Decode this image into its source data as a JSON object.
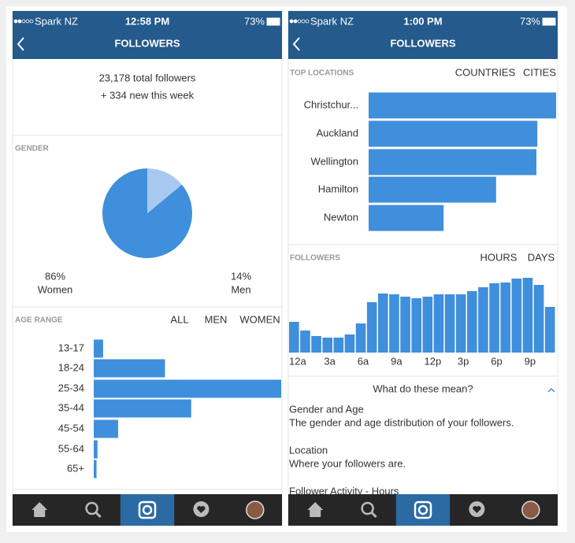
{
  "screens": [
    {
      "status": {
        "carrier": "Spark NZ",
        "time": "12:58 PM",
        "battery": "73%"
      },
      "title": "FOLLOWERS",
      "total": "23,178 total followers",
      "new": "+ 334 new this week",
      "gender": {
        "heading": "GENDER",
        "type": "pie",
        "categories": [
          "Women",
          "Men"
        ],
        "values": [
          86,
          14
        ],
        "value_labels": [
          "86%",
          "14%"
        ],
        "colors": [
          "#3f8fdc",
          "#a7c9ef"
        ]
      },
      "age": {
        "heading": "AGE RANGE",
        "tabs": [
          "ALL",
          "MEN",
          "WOMEN"
        ],
        "active_tab": 0,
        "type": "bar",
        "categories": [
          "13-17",
          "18-24",
          "25-34",
          "35-44",
          "45-54",
          "55-64",
          "65+"
        ],
        "values": [
          5,
          38,
          100,
          52,
          13,
          2,
          1.5
        ],
        "xlim": [
          0,
          100
        ],
        "color": "#3f8fdc"
      }
    },
    {
      "status": {
        "carrier": "Spark NZ",
        "time": "1:00 PM",
        "battery": "73%"
      },
      "title": "FOLLOWERS",
      "locations": {
        "heading": "TOP LOCATIONS",
        "tabs": [
          "COUNTRIES",
          "CITIES"
        ],
        "active_tab": 1,
        "type": "bar",
        "categories": [
          "Christchur...",
          "Auckland",
          "Wellington",
          "Hamilton",
          "Newton"
        ],
        "values": [
          100,
          90,
          89.5,
          68,
          40
        ],
        "xlim": [
          0,
          100
        ],
        "color": "#3f8fdc"
      },
      "activity": {
        "heading": "FOLLOWERS",
        "tabs": [
          "HOURS",
          "DAYS"
        ],
        "active_tab": 0,
        "type": "bar",
        "categories": [
          "12a",
          null,
          null,
          "3a",
          null,
          null,
          "6a",
          null,
          null,
          "9a",
          null,
          null,
          "12p",
          null,
          null,
          "3p",
          null,
          null,
          "6p",
          null,
          null,
          "9p",
          null,
          null
        ],
        "values": [
          39,
          28,
          21,
          19,
          19,
          23,
          37,
          64,
          75,
          74,
          71,
          69,
          71,
          74,
          74,
          74,
          78,
          83,
          88,
          89,
          94,
          95,
          86,
          58
        ],
        "ylim": [
          0,
          100
        ],
        "color": "#3f8fdc"
      },
      "help": {
        "question": "What do these mean?",
        "items": [
          {
            "title": "Gender and Age",
            "text": "The gender and age distribution of your followers."
          },
          {
            "title": "Location",
            "text": "Where your followers are."
          },
          {
            "title": "Follower Activity - Hours"
          }
        ]
      }
    }
  ]
}
